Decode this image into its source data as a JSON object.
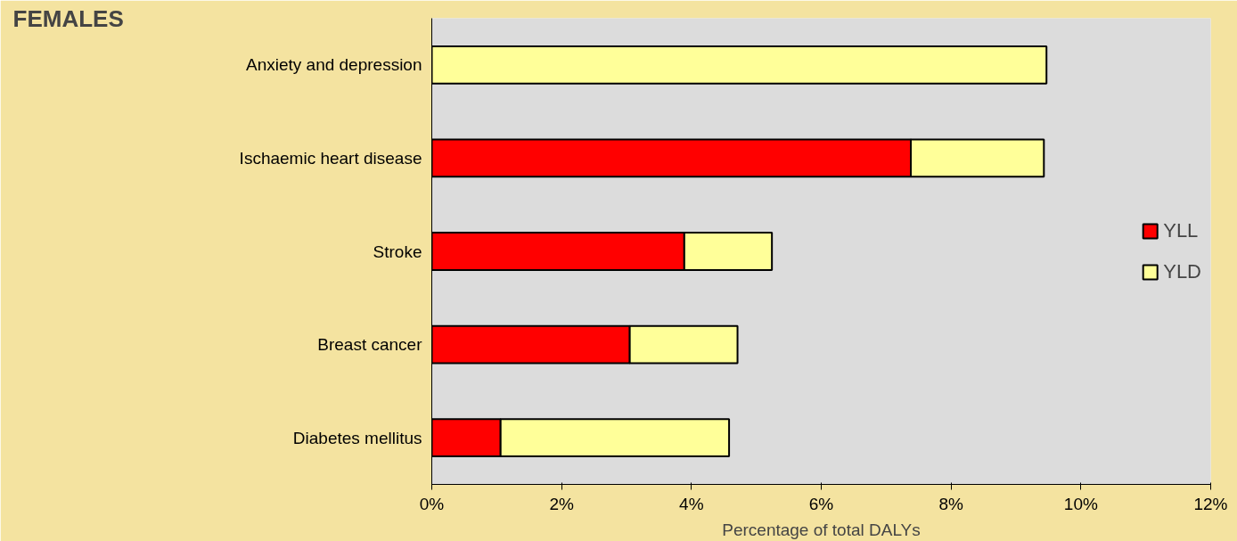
{
  "chart_data": {
    "type": "bar",
    "orientation": "horizontal",
    "stacked": true,
    "title": "FEMALES",
    "xlabel": "Percentage of total DALYs",
    "categories": [
      "Anxiety and depression",
      "Ischaemic heart disease",
      "Stroke",
      "Breast cancer",
      "Diabetes mellitus"
    ],
    "series": [
      {
        "name": "YLL",
        "color": "#ff0000",
        "values": [
          0,
          7.38,
          3.89,
          3.05,
          1.06
        ]
      },
      {
        "name": "YLD",
        "color": "#ffff99",
        "values": [
          9.47,
          2.05,
          1.35,
          1.66,
          3.52
        ]
      }
    ],
    "xlim": [
      0,
      12
    ],
    "xticks": [
      {
        "value": 0,
        "label": "0%"
      },
      {
        "value": 2,
        "label": "2%"
      },
      {
        "value": 4,
        "label": "4%"
      },
      {
        "value": 6,
        "label": "6%"
      },
      {
        "value": 8,
        "label": "8%"
      },
      {
        "value": 10,
        "label": "10%"
      },
      {
        "value": 12,
        "label": "12%"
      }
    ],
    "legend": "right"
  }
}
